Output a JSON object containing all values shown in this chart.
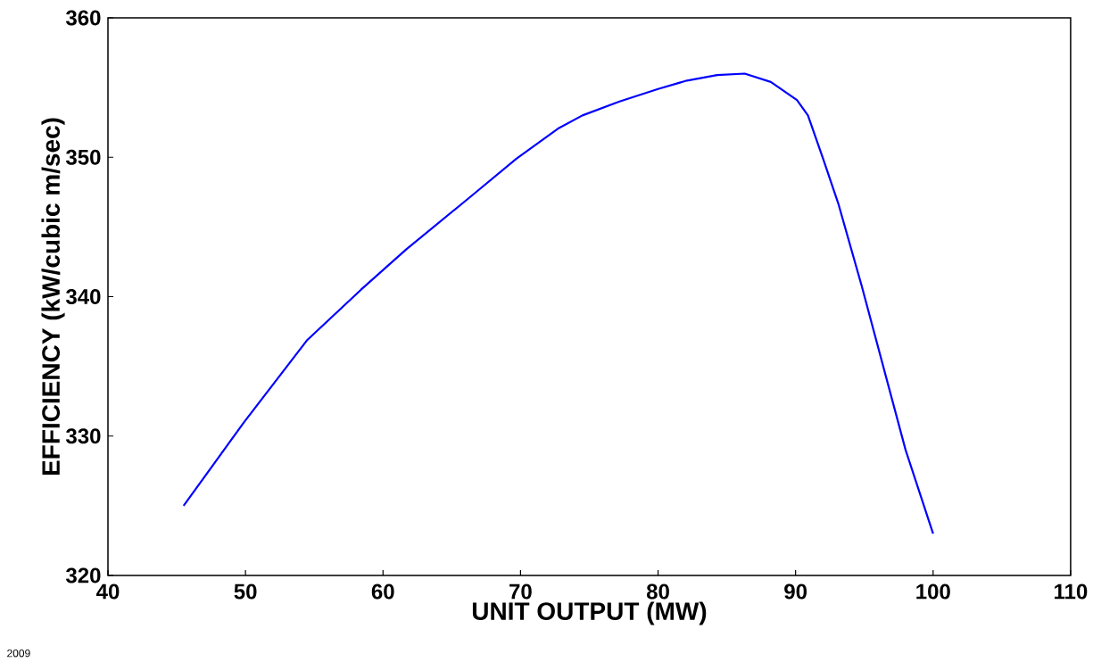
{
  "chart_data": {
    "type": "line",
    "xlabel": "UNIT OUTPUT (MW)",
    "ylabel": "EFFICIENCY (kW/cubic m/sec)",
    "annotations": [
      "2009"
    ],
    "xlim": [
      40,
      110
    ],
    "xticks": [
      40,
      50,
      60,
      70,
      80,
      90,
      100,
      110
    ],
    "ylim": [
      320,
      360
    ],
    "yticks": [
      320,
      330,
      340,
      350,
      360
    ],
    "grid": false,
    "marker": "none",
    "line_style": "solid",
    "series": [
      {
        "color": "#0000ff",
        "x": [
          45.5,
          49.9,
          54.5,
          58.4,
          61.7,
          66.4,
          69.7,
          72.8,
          74.5,
          77.2,
          80.0,
          82.1,
          84.3,
          86.3,
          88.2,
          90.1,
          90.9,
          92.0,
          93.1,
          94.8,
          96.4,
          98.0,
          100.0
        ],
        "values": [
          325.0,
          331.0,
          336.9,
          340.5,
          343.4,
          347.2,
          349.9,
          352.1,
          353.0,
          354.0,
          354.9,
          355.5,
          355.9,
          356.0,
          355.4,
          354.1,
          353.0,
          349.9,
          346.7,
          340.8,
          334.9,
          329.0,
          323.0
        ]
      }
    ]
  }
}
